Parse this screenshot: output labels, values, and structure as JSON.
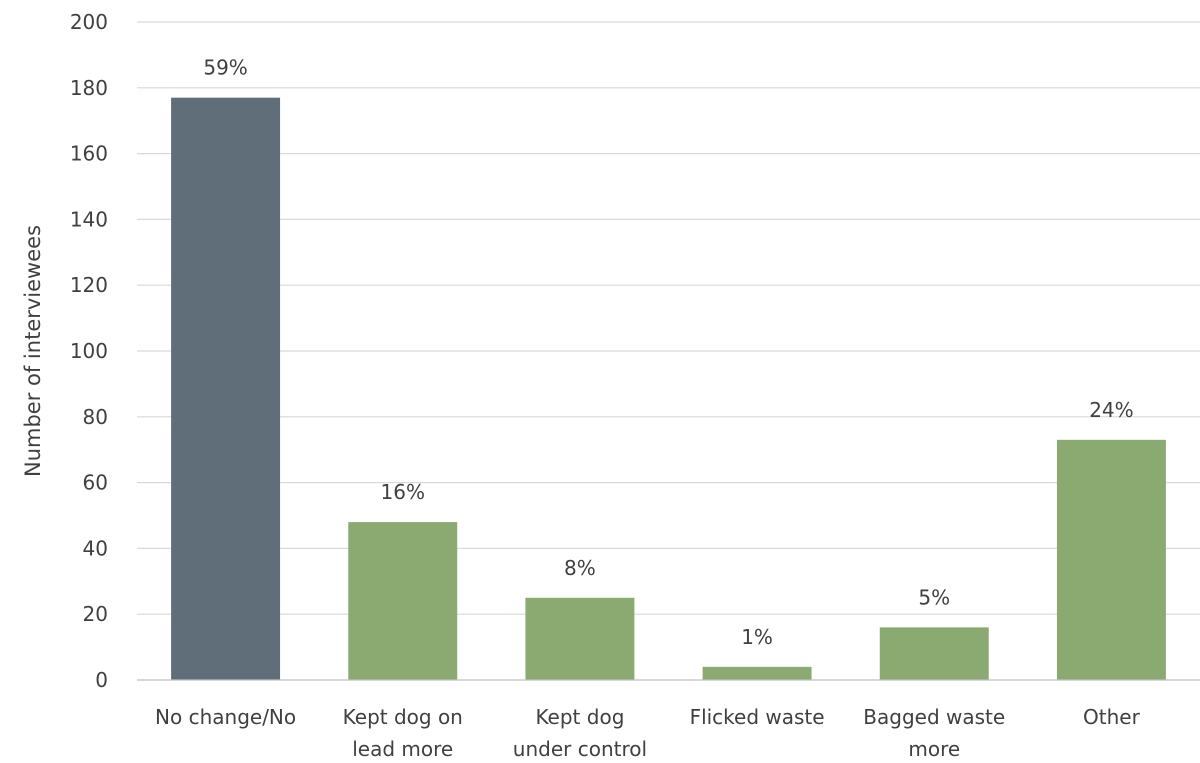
{
  "chart_data": {
    "type": "bar",
    "title": "",
    "xlabel": "",
    "ylabel": "Number of interviewees",
    "ylim": [
      0,
      200
    ],
    "yticks": [
      0,
      20,
      40,
      60,
      80,
      100,
      120,
      140,
      160,
      180,
      200
    ],
    "grid": true,
    "legend": "none",
    "categories": [
      [
        "No change/No"
      ],
      [
        "Kept dog on",
        "lead more"
      ],
      [
        "Kept dog",
        "under control"
      ],
      [
        "Flicked waste"
      ],
      [
        "Bagged waste",
        "more"
      ],
      [
        "Other"
      ]
    ],
    "values": [
      177,
      48,
      25,
      4,
      16,
      73
    ],
    "data_labels": [
      "59%",
      "16%",
      "8%",
      "1%",
      "5%",
      "24%"
    ],
    "bar_colors": [
      "#5f6e78",
      "#8aaa72",
      "#8aaa72",
      "#8aaa72",
      "#8aaa72",
      "#8aaa72"
    ]
  }
}
